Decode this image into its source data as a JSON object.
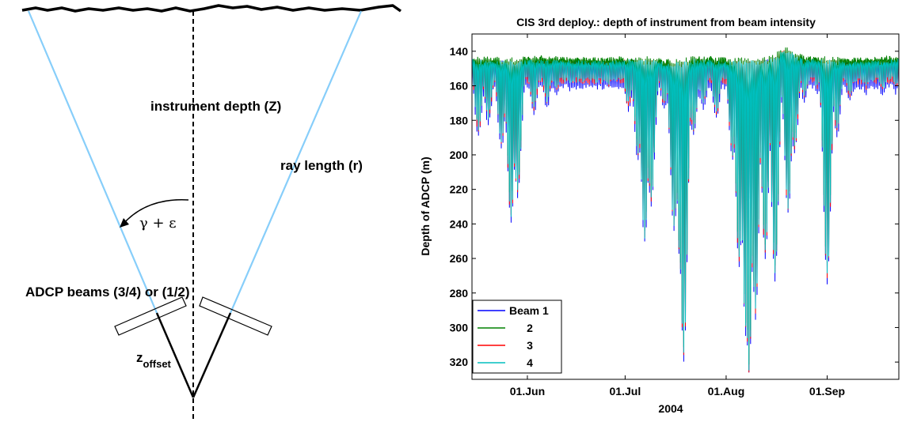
{
  "diagram": {
    "instrument_depth_label": "instrument depth (Z)",
    "ray_length_label": "ray length (r)",
    "angle_label": "γ + ε",
    "beams_label": "ADCP beams (3/4) or (1/2)",
    "zoffset_main": "z",
    "zoffset_sub": "offset",
    "colors": {
      "beam_ray": "#87cefa",
      "surface": "#000000"
    }
  },
  "chart_data": {
    "type": "line",
    "title": "CIS 3rd deploy.: depth of instrument from beam intensity",
    "xlabel": "2004",
    "ylabel": "Depth of ADCP (m)",
    "ylim": [
      130,
      330
    ],
    "y_reversed": true,
    "yticks": [
      140,
      160,
      180,
      200,
      220,
      240,
      260,
      280,
      300,
      320
    ],
    "xlim": [
      "2004-05-15",
      "2004-09-23"
    ],
    "xticks": [
      {
        "date": "2004-06-01",
        "label": "01.Jun"
      },
      {
        "date": "2004-07-01",
        "label": "01.Jul"
      },
      {
        "date": "2004-08-01",
        "label": "01.Aug"
      },
      {
        "date": "2004-09-01",
        "label": "01.Sep"
      }
    ],
    "grid": false,
    "legend_position": "bottom-left",
    "series": [
      {
        "name": "Beam 1",
        "color": "#0000ff"
      },
      {
        "name": "2",
        "color": "#008000"
      },
      {
        "name": "3",
        "color": "#ff0000"
      },
      {
        "name": "4",
        "color": "#00bfbf"
      }
    ],
    "baseline_depth": [
      {
        "date": "2004-05-15",
        "depth": 146
      },
      {
        "date": "2004-05-28",
        "depth": 147
      },
      {
        "date": "2004-06-04",
        "depth": 146
      },
      {
        "date": "2004-06-22",
        "depth": 147
      },
      {
        "date": "2004-07-05",
        "depth": 146
      },
      {
        "date": "2004-07-18",
        "depth": 148
      },
      {
        "date": "2004-07-22",
        "depth": 146
      },
      {
        "date": "2004-08-05",
        "depth": 147
      },
      {
        "date": "2004-08-15",
        "depth": 146
      },
      {
        "date": "2004-08-19",
        "depth": 140
      },
      {
        "date": "2004-08-25",
        "depth": 146
      },
      {
        "date": "2004-09-10",
        "depth": 147
      },
      {
        "date": "2004-09-23",
        "depth": 146
      }
    ],
    "troughs": [
      {
        "date": "2004-05-17",
        "depth": 185
      },
      {
        "date": "2004-05-20",
        "depth": 178
      },
      {
        "date": "2004-05-24",
        "depth": 192
      },
      {
        "date": "2004-05-27",
        "depth": 235
      },
      {
        "date": "2004-05-29",
        "depth": 220
      },
      {
        "date": "2004-06-03",
        "depth": 172
      },
      {
        "date": "2004-06-07",
        "depth": 168
      },
      {
        "date": "2004-06-10",
        "depth": 162
      },
      {
        "date": "2004-06-14",
        "depth": 158
      },
      {
        "date": "2004-06-20",
        "depth": 155
      },
      {
        "date": "2004-06-26",
        "depth": 158
      },
      {
        "date": "2004-07-02",
        "depth": 170
      },
      {
        "date": "2004-07-05",
        "depth": 200
      },
      {
        "date": "2004-07-07",
        "depth": 247
      },
      {
        "date": "2004-07-09",
        "depth": 225
      },
      {
        "date": "2004-07-13",
        "depth": 170
      },
      {
        "date": "2004-07-16",
        "depth": 240
      },
      {
        "date": "2004-07-18",
        "depth": 265
      },
      {
        "date": "2004-07-19",
        "depth": 315
      },
      {
        "date": "2004-07-22",
        "depth": 185
      },
      {
        "date": "2004-07-25",
        "depth": 170
      },
      {
        "date": "2004-07-29",
        "depth": 175
      },
      {
        "date": "2004-08-03",
        "depth": 200
      },
      {
        "date": "2004-08-05",
        "depth": 260
      },
      {
        "date": "2004-08-07",
        "depth": 300
      },
      {
        "date": "2004-08-08",
        "depth": 324
      },
      {
        "date": "2004-08-10",
        "depth": 290
      },
      {
        "date": "2004-08-13",
        "depth": 255
      },
      {
        "date": "2004-08-16",
        "depth": 268
      },
      {
        "date": "2004-08-20",
        "depth": 230
      },
      {
        "date": "2004-08-22",
        "depth": 195
      },
      {
        "date": "2004-08-25",
        "depth": 165
      },
      {
        "date": "2004-08-29",
        "depth": 160
      },
      {
        "date": "2004-09-01",
        "depth": 270
      },
      {
        "date": "2004-09-04",
        "depth": 185
      },
      {
        "date": "2004-09-08",
        "depth": 165
      },
      {
        "date": "2004-09-13",
        "depth": 160
      },
      {
        "date": "2004-09-18",
        "depth": 162
      },
      {
        "date": "2004-09-22",
        "depth": 160
      }
    ]
  }
}
